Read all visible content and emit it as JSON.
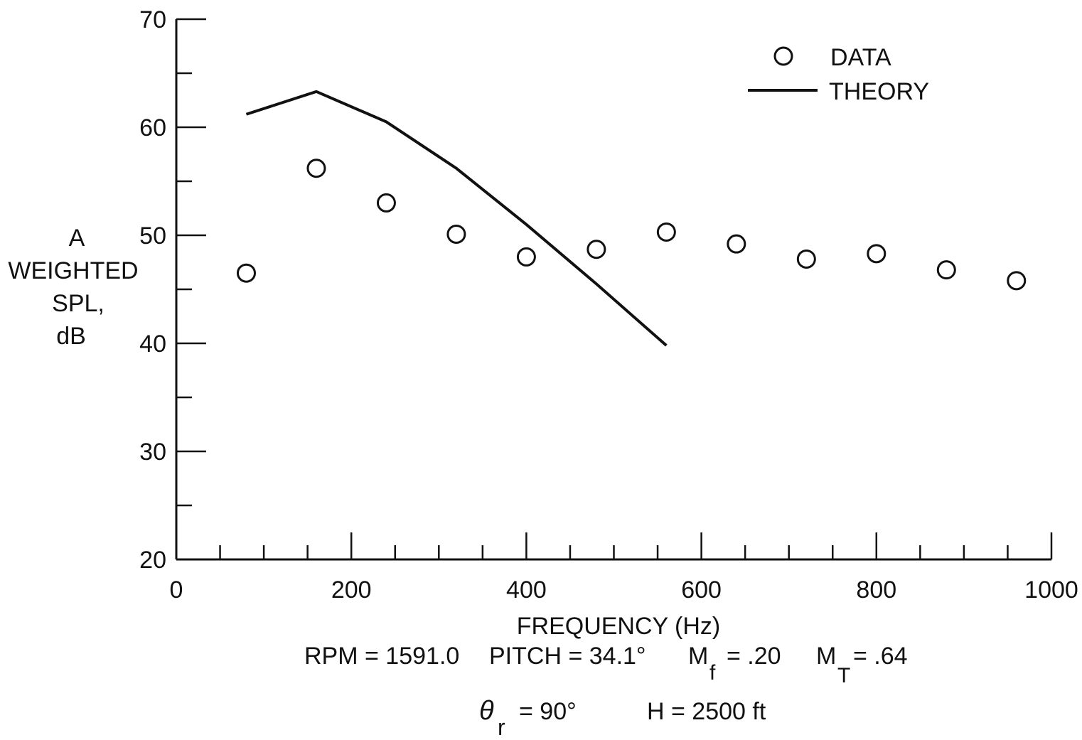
{
  "chart_data": {
    "type": "scatter",
    "xlabel": "FREQUENCY (Hz)",
    "ylabel_lines": [
      "A",
      "WEIGHTED",
      "SPL,",
      "dB"
    ],
    "xlim": [
      0,
      1000
    ],
    "ylim": [
      20,
      70
    ],
    "x_ticks": [
      "0",
      "200",
      "400",
      "600",
      "800",
      "1000"
    ],
    "y_ticks": [
      "20",
      "30",
      "40",
      "50",
      "60",
      "70"
    ],
    "grid": false,
    "legend_position": "top-right",
    "legend": [
      {
        "label": "DATA",
        "marker": "open-circle"
      },
      {
        "label": "THEORY",
        "marker": "line"
      }
    ],
    "series": [
      {
        "name": "DATA",
        "style": "open-circle",
        "x": [
          80,
          160,
          240,
          320,
          400,
          480,
          560,
          640,
          720,
          800,
          880,
          960
        ],
        "y": [
          46.5,
          56.2,
          53.0,
          50.1,
          48.0,
          48.7,
          50.3,
          49.2,
          47.8,
          48.3,
          46.8,
          45.8
        ]
      },
      {
        "name": "THEORY",
        "style": "line",
        "x": [
          80,
          160,
          240,
          320,
          400,
          480,
          560
        ],
        "y": [
          61.2,
          63.3,
          60.5,
          56.2,
          51.0,
          45.5,
          39.8
        ]
      }
    ],
    "annotations": {
      "line1": {
        "rpm": "RPM = 1591.0",
        "pitch": "PITCH = 34.1°",
        "mf_main": "M",
        "mf_sub": "f",
        "mf_value": "= .20",
        "mt_main": "M",
        "mt_sub": "T",
        "mt_value": "= .64"
      },
      "line2": {
        "theta_main": "θ",
        "theta_sub": "r",
        "theta_value": "= 90°",
        "h": "H = 2500 ft"
      }
    }
  }
}
